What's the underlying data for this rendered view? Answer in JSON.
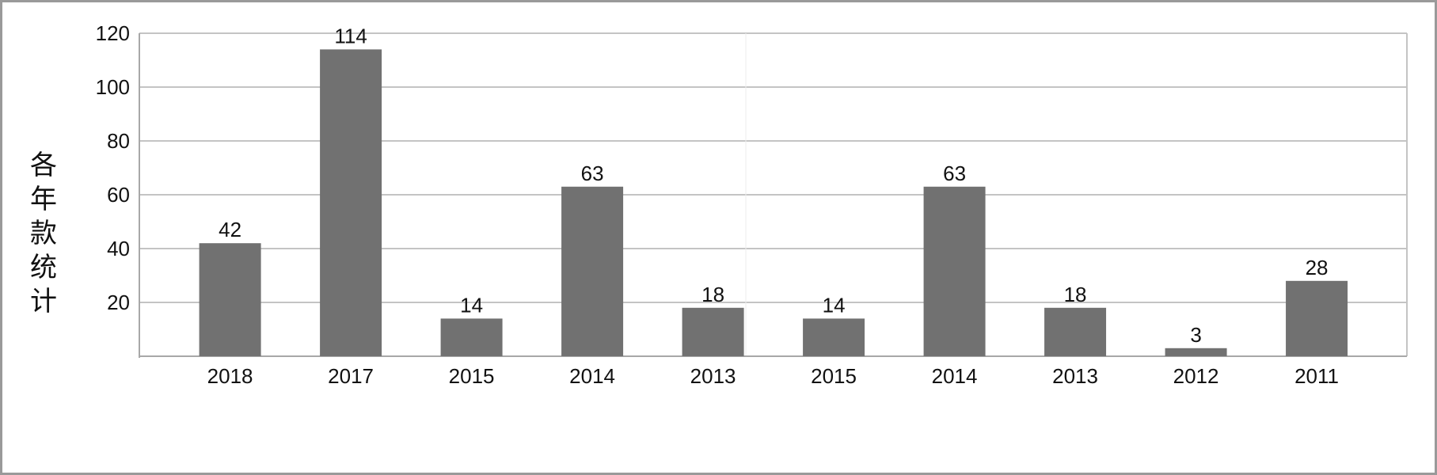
{
  "chart_data": {
    "type": "bar",
    "title": "",
    "xlabel": "",
    "ylabel": "各年款统计",
    "categories": [
      "2018",
      "2017",
      "2015",
      "2014",
      "2013",
      "2015",
      "2014",
      "2013",
      "2012",
      "2011"
    ],
    "values": [
      42,
      114,
      14,
      63,
      18,
      14,
      63,
      18,
      3,
      28
    ],
    "ylim": [
      0,
      120
    ],
    "yticks": [
      20,
      40,
      60,
      80,
      100,
      120
    ],
    "grid": true,
    "legend": "none",
    "bar_color": "#717171",
    "data_labels": true
  }
}
